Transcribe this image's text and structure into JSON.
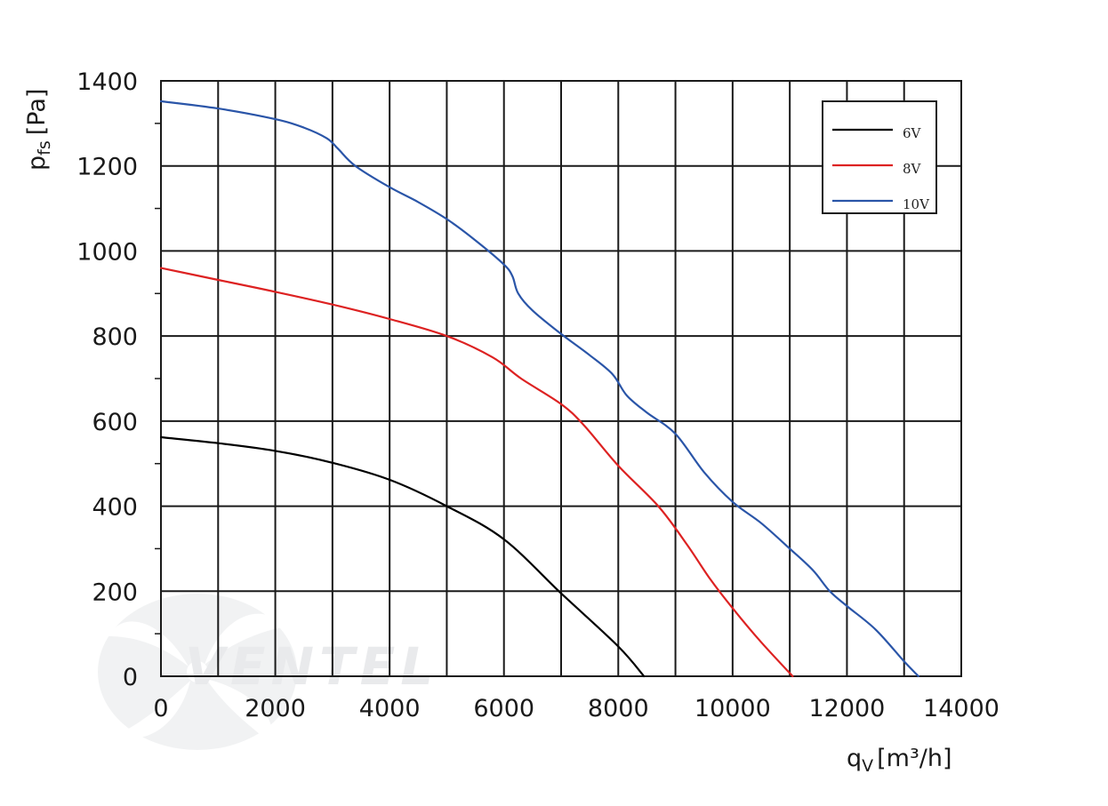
{
  "chart_data": {
    "type": "line",
    "xlabel_main": "q",
    "xlabel_sub": "V",
    "xlabel_unit": "[m³/h]",
    "ylabel_main": "p",
    "ylabel_sub": "fs",
    "ylabel_unit": "[Pa]",
    "xlim": [
      0,
      14000
    ],
    "ylim": [
      0,
      1400
    ],
    "x_ticks": [
      0,
      2000,
      4000,
      6000,
      8000,
      10000,
      12000,
      14000
    ],
    "y_ticks": [
      0,
      200,
      400,
      600,
      800,
      1000,
      1200,
      1400
    ],
    "x_tick_labels": [
      "0",
      "2000",
      "4000",
      "6000",
      "8000",
      "10000",
      "12000",
      "14000"
    ],
    "y_tick_labels": [
      "0",
      "200",
      "400",
      "600",
      "800",
      "1000",
      "1200",
      "1400"
    ],
    "grid": true,
    "legend_position": "top-right",
    "series": [
      {
        "name": "6V",
        "color": "#000000",
        "points": [
          [
            0,
            562
          ],
          [
            1000,
            548
          ],
          [
            2000,
            530
          ],
          [
            3000,
            502
          ],
          [
            4000,
            462
          ],
          [
            5000,
            400
          ],
          [
            6000,
            322
          ],
          [
            7000,
            195
          ],
          [
            8000,
            70
          ],
          [
            8450,
            0
          ]
        ]
      },
      {
        "name": "8V",
        "color": "#dd2222",
        "points": [
          [
            0,
            960
          ],
          [
            1000,
            932
          ],
          [
            2000,
            904
          ],
          [
            3000,
            874
          ],
          [
            4000,
            840
          ],
          [
            5000,
            800
          ],
          [
            5800,
            750
          ],
          [
            6300,
            700
          ],
          [
            7000,
            640
          ],
          [
            7400,
            590
          ],
          [
            8000,
            495
          ],
          [
            8700,
            400
          ],
          [
            9200,
            310
          ],
          [
            9600,
            230
          ],
          [
            10000,
            160
          ],
          [
            10500,
            80
          ],
          [
            11050,
            0
          ]
        ]
      },
      {
        "name": "10V",
        "color": "#2a55a8",
        "points": [
          [
            0,
            1352
          ],
          [
            1000,
            1335
          ],
          [
            2000,
            1310
          ],
          [
            2500,
            1290
          ],
          [
            2900,
            1265
          ],
          [
            3100,
            1240
          ],
          [
            3400,
            1200
          ],
          [
            4000,
            1150
          ],
          [
            4500,
            1115
          ],
          [
            5000,
            1075
          ],
          [
            5500,
            1025
          ],
          [
            6000,
            968
          ],
          [
            6150,
            940
          ],
          [
            6250,
            900
          ],
          [
            6500,
            860
          ],
          [
            7000,
            805
          ],
          [
            7500,
            755
          ],
          [
            7900,
            710
          ],
          [
            8150,
            660
          ],
          [
            8500,
            620
          ],
          [
            9000,
            570
          ],
          [
            9500,
            480
          ],
          [
            10000,
            410
          ],
          [
            10500,
            360
          ],
          [
            11000,
            300
          ],
          [
            11400,
            250
          ],
          [
            11700,
            200
          ],
          [
            12000,
            165
          ],
          [
            12500,
            110
          ],
          [
            13000,
            35
          ],
          [
            13250,
            0
          ]
        ]
      }
    ]
  },
  "watermark": {
    "brand": "VENTEL",
    "icon": "fan-logo-icon"
  }
}
